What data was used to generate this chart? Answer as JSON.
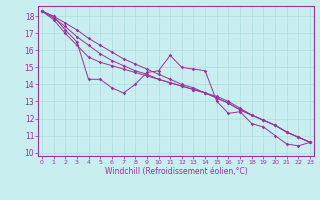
{
  "xlabel": "Windchill (Refroidissement éolien,°C)",
  "background_color": "#c8eef0",
  "grid_color": "#b0dde0",
  "line_color": "#993399",
  "x_data": [
    0,
    1,
    2,
    3,
    4,
    5,
    6,
    7,
    8,
    9,
    10,
    11,
    12,
    13,
    14,
    15,
    16,
    17,
    18,
    19,
    20,
    21,
    22,
    23
  ],
  "series": [
    [
      18.3,
      18.0,
      17.2,
      16.5,
      14.3,
      14.3,
      13.8,
      13.5,
      14.0,
      14.7,
      14.8,
      15.7,
      15.0,
      14.9,
      14.8,
      13.0,
      12.3,
      12.4,
      11.7,
      11.5,
      11.0,
      10.5,
      10.4,
      10.6
    ],
    [
      18.3,
      17.8,
      17.0,
      16.3,
      15.6,
      15.3,
      15.1,
      14.9,
      14.7,
      14.5,
      14.3,
      14.1,
      13.9,
      13.7,
      13.5,
      13.3,
      13.0,
      12.6,
      12.2,
      11.9,
      11.6,
      11.2,
      10.9,
      10.6
    ],
    [
      18.3,
      17.9,
      17.4,
      16.8,
      16.3,
      15.8,
      15.4,
      15.1,
      14.8,
      14.6,
      14.3,
      14.1,
      13.9,
      13.7,
      13.5,
      13.2,
      12.9,
      12.5,
      12.2,
      11.9,
      11.6,
      11.2,
      10.9,
      10.6
    ],
    [
      18.3,
      18.0,
      17.6,
      17.2,
      16.7,
      16.3,
      15.9,
      15.5,
      15.2,
      14.9,
      14.6,
      14.3,
      14.0,
      13.8,
      13.5,
      13.2,
      12.9,
      12.5,
      12.2,
      11.9,
      11.6,
      11.2,
      10.9,
      10.6
    ]
  ],
  "ylim": [
    9.8,
    18.6
  ],
  "xlim": [
    -0.3,
    23.3
  ],
  "yticks": [
    10,
    11,
    12,
    13,
    14,
    15,
    16,
    17,
    18
  ],
  "xticks": [
    0,
    1,
    2,
    3,
    4,
    5,
    6,
    7,
    8,
    9,
    10,
    11,
    12,
    13,
    14,
    15,
    16,
    17,
    18,
    19,
    20,
    21,
    22,
    23
  ]
}
